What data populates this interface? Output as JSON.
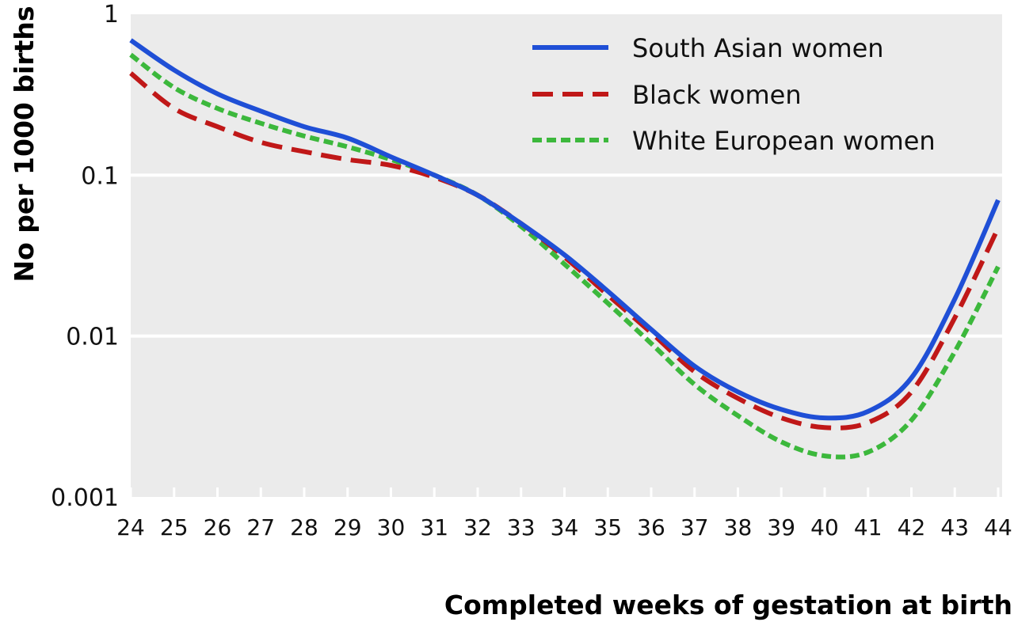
{
  "chart_data": {
    "type": "line",
    "xlabel": "Completed weeks of gestation at birth",
    "ylabel": "No per 1000 births",
    "yscale": "log",
    "ylim": [
      0.001,
      1
    ],
    "xlim": [
      24,
      44
    ],
    "yticks": [
      {
        "value": 1,
        "label": "1"
      },
      {
        "value": 0.1,
        "label": "0.1"
      },
      {
        "value": 0.01,
        "label": "0.01"
      },
      {
        "value": 0.001,
        "label": "0.001"
      }
    ],
    "xticks": [
      "24",
      "25",
      "26",
      "27",
      "28",
      "29",
      "30",
      "31",
      "32",
      "33",
      "34",
      "35",
      "36",
      "37",
      "38",
      "39",
      "40",
      "41",
      "42",
      "43",
      "44"
    ],
    "grid": "horizontal",
    "legend_position": "top-right",
    "background": "#ebebeb",
    "x": [
      24,
      25,
      26,
      27,
      28,
      29,
      30,
      31,
      32,
      33,
      34,
      35,
      36,
      37,
      38,
      39,
      40,
      41,
      42,
      43,
      44
    ],
    "series": [
      {
        "name": "South Asian women",
        "color": "#1f4fd6",
        "style": "solid",
        "values": [
          0.69,
          0.45,
          0.32,
          0.25,
          0.2,
          0.17,
          0.13,
          0.1,
          0.075,
          0.05,
          0.032,
          0.019,
          0.011,
          0.0065,
          0.0045,
          0.0035,
          0.0031,
          0.0034,
          0.0055,
          0.017,
          0.07
        ]
      },
      {
        "name": "Black women",
        "color": "#c01818",
        "style": "dashed",
        "values": [
          0.43,
          0.26,
          0.2,
          0.16,
          0.14,
          0.125,
          0.115,
          0.097,
          0.075,
          0.05,
          0.031,
          0.018,
          0.0105,
          0.006,
          0.0041,
          0.0031,
          0.0027,
          0.0029,
          0.0045,
          0.013,
          0.047
        ]
      },
      {
        "name": "White European women",
        "color": "#3cb83c",
        "style": "dotted",
        "values": [
          0.56,
          0.35,
          0.26,
          0.21,
          0.175,
          0.15,
          0.125,
          0.1,
          0.075,
          0.048,
          0.028,
          0.016,
          0.009,
          0.005,
          0.0032,
          0.0022,
          0.0018,
          0.0019,
          0.003,
          0.008,
          0.027
        ]
      }
    ]
  }
}
